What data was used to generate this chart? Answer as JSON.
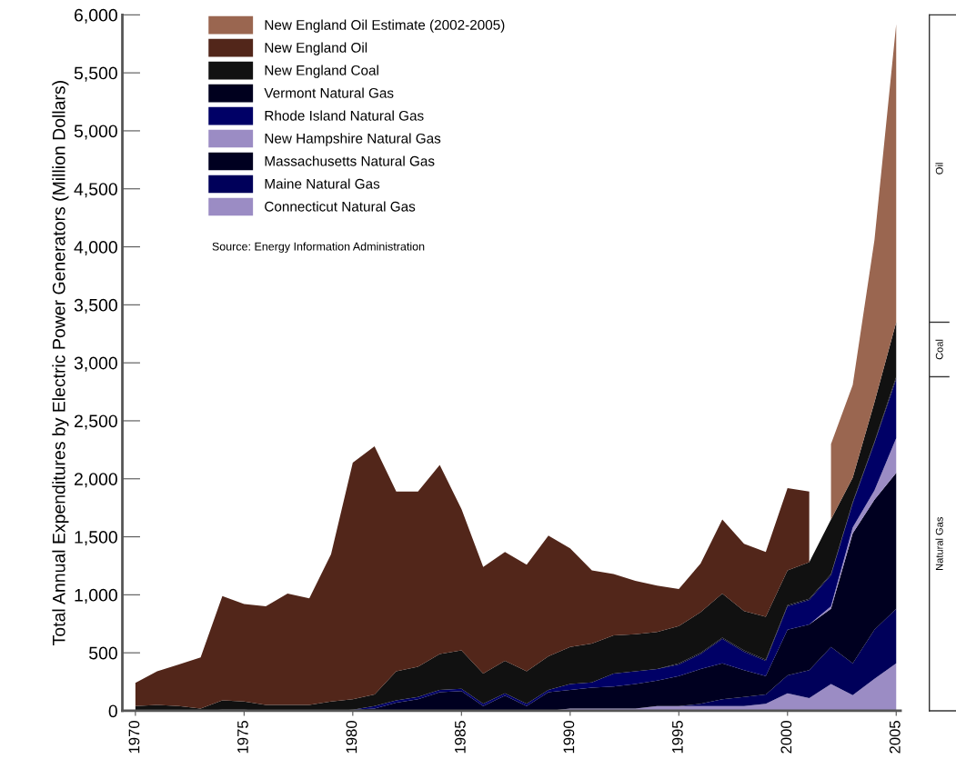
{
  "chart_data": {
    "type": "area",
    "stacked": true,
    "ylabel": "Total Annual Expenditures by Electric Power Generators (Million Dollars)",
    "x": [
      1970,
      1971,
      1972,
      1973,
      1974,
      1975,
      1976,
      1977,
      1978,
      1979,
      1980,
      1981,
      1982,
      1983,
      1984,
      1985,
      1986,
      1987,
      1988,
      1989,
      1990,
      1991,
      1992,
      1993,
      1994,
      1995,
      1996,
      1997,
      1998,
      1999,
      2000,
      2001,
      2002,
      2003,
      2004,
      2005
    ],
    "xlim": [
      1969.4,
      2005.2
    ],
    "xticks": [
      1970,
      1975,
      1980,
      1985,
      1990,
      1995,
      2000,
      2005
    ],
    "ylim": [
      0,
      6000
    ],
    "yticks": [
      0,
      500,
      {
        "value": 1000,
        "label": "1,000"
      },
      {
        "value": 1500,
        "label": "1,500"
      },
      {
        "value": 2000,
        "label": "2,000"
      },
      {
        "value": 2500,
        "label": "2,500"
      },
      {
        "value": 3000,
        "label": "3,000"
      },
      {
        "value": 3500,
        "label": "3,500"
      },
      {
        "value": 4000,
        "label": "4,000"
      },
      {
        "value": 4500,
        "label": "4,500"
      },
      {
        "value": 5000,
        "label": "5,000"
      },
      {
        "value": 5500,
        "label": "5,500"
      },
      {
        "value": 6000,
        "label": "6,000"
      }
    ],
    "grid": false,
    "legend": "top left",
    "annotations": [
      "Source: Energy Information Administration",
      "Oil",
      "Coal",
      "Natural Gas"
    ],
    "series": [
      {
        "name": "Connecticut Natural Gas",
        "color": "#9b8cc4",
        "values": [
          0,
          0,
          0,
          0,
          0,
          0,
          0,
          0,
          0,
          0,
          0,
          0,
          0,
          0,
          0,
          0,
          0,
          0,
          0,
          0,
          20,
          20,
          20,
          20,
          40,
          40,
          40,
          40,
          40,
          60,
          150,
          110,
          230,
          135,
          275,
          410
        ]
      },
      {
        "name": "Maine Natural Gas",
        "color": "#00005a",
        "values": [
          0,
          0,
          0,
          0,
          0,
          0,
          0,
          0,
          0,
          0,
          0,
          0,
          0,
          0,
          0,
          0,
          0,
          0,
          0,
          0,
          0,
          0,
          0,
          0,
          0,
          0,
          20,
          60,
          80,
          80,
          155,
          240,
          320,
          275,
          425,
          470
        ]
      },
      {
        "name": "Massachusetts Natural Gas",
        "color": "#000020",
        "values": [
          0,
          0,
          0,
          0,
          10,
          10,
          0,
          0,
          0,
          0,
          10,
          20,
          70,
          100,
          160,
          170,
          40,
          130,
          40,
          160,
          160,
          180,
          190,
          210,
          220,
          260,
          300,
          310,
          230,
          160,
          395,
          395,
          330,
          1120,
          1120,
          1170
        ]
      },
      {
        "name": "New Hampshire Natural Gas",
        "color": "#9b8cc4",
        "values": [
          0,
          0,
          0,
          0,
          0,
          0,
          0,
          0,
          0,
          0,
          0,
          0,
          0,
          0,
          0,
          0,
          0,
          0,
          0,
          0,
          0,
          0,
          0,
          0,
          0,
          0,
          0,
          0,
          0,
          0,
          0,
          0,
          20,
          50,
          80,
          300
        ]
      },
      {
        "name": "Rhode Island Natural Gas",
        "color": "#000066",
        "values": [
          0,
          0,
          0,
          0,
          0,
          0,
          0,
          0,
          0,
          0,
          0,
          20,
          20,
          20,
          20,
          20,
          20,
          20,
          20,
          20,
          50,
          45,
          110,
          110,
          100,
          100,
          130,
          210,
          160,
          130,
          200,
          210,
          270,
          210,
          410,
          510
        ]
      },
      {
        "name": "Vermont Natural Gas",
        "color": "#00001e",
        "values": [
          0,
          0,
          0,
          0,
          0,
          0,
          0,
          0,
          0,
          0,
          0,
          0,
          0,
          0,
          0,
          0,
          0,
          0,
          0,
          0,
          0,
          0,
          0,
          0,
          0,
          10,
          10,
          10,
          10,
          10,
          10,
          10,
          10,
          10,
          10,
          20
        ]
      },
      {
        "name": "New England Coal",
        "color": "#111111",
        "values": [
          40,
          50,
          40,
          20,
          80,
          70,
          50,
          50,
          50,
          80,
          90,
          100,
          250,
          260,
          310,
          330,
          260,
          280,
          280,
          290,
          320,
          335,
          330,
          320,
          320,
          320,
          350,
          380,
          340,
          370,
          300,
          315,
          470,
          210,
          340,
          470
        ]
      },
      {
        "name": "New England Oil",
        "color": "#52261a",
        "values": [
          200,
          290,
          360,
          440,
          900,
          840,
          850,
          960,
          920,
          1270,
          2040,
          2140,
          1550,
          1510,
          1630,
          1220,
          920,
          940,
          920,
          1040,
          850,
          630,
          530,
          460,
          400,
          320,
          420,
          640,
          580,
          560,
          710,
          610,
          null,
          null,
          null,
          null
        ]
      },
      {
        "name": "New England Oil Estimate (2002-2005)",
        "color": "#9a6650",
        "values": [
          null,
          null,
          null,
          null,
          null,
          null,
          null,
          null,
          null,
          null,
          null,
          null,
          null,
          null,
          null,
          null,
          null,
          null,
          null,
          null,
          null,
          null,
          null,
          null,
          null,
          null,
          null,
          null,
          null,
          null,
          null,
          null,
          650,
          800,
          1400,
          2570
        ]
      }
    ]
  }
}
